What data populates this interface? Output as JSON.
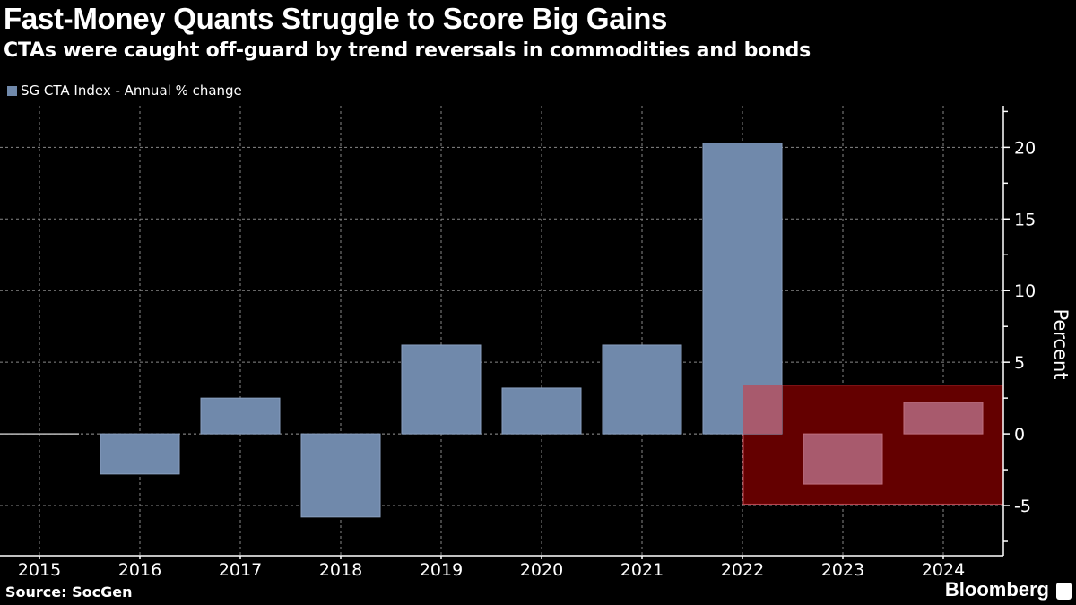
{
  "title": "Fast-Money Quants Struggle to Score Big Gains",
  "subtitle": "CTAs were caught off-guard by trend reversals in commodities and bonds",
  "source": "Source: SocGen",
  "brand": "Bloomberg",
  "chart_data": {
    "type": "bar",
    "categories": [
      "2015",
      "2016",
      "2017",
      "2018",
      "2019",
      "2020",
      "2021",
      "2022",
      "2023",
      "2024"
    ],
    "series": [
      {
        "name": "SG CTA Index - Annual % change",
        "values": [
          0.0,
          -2.8,
          2.5,
          -5.8,
          6.2,
          3.2,
          6.2,
          20.3,
          -3.5,
          2.2
        ]
      }
    ],
    "ylabel": "Percent",
    "ylim": [
      -8.5,
      22.9
    ],
    "yticks": [
      -5,
      0,
      5,
      10,
      15,
      20
    ],
    "y_axis_side": "right",
    "grid": true,
    "legend_placement": "top-left",
    "highlight": {
      "from_category": "2022",
      "to_category": "end",
      "y_range": [
        -4.9,
        3.4
      ],
      "color": "#640000"
    },
    "colors": {
      "bar": "#7089ab",
      "bar_in_highlight": "#a85a6d",
      "background": "#000000"
    }
  }
}
